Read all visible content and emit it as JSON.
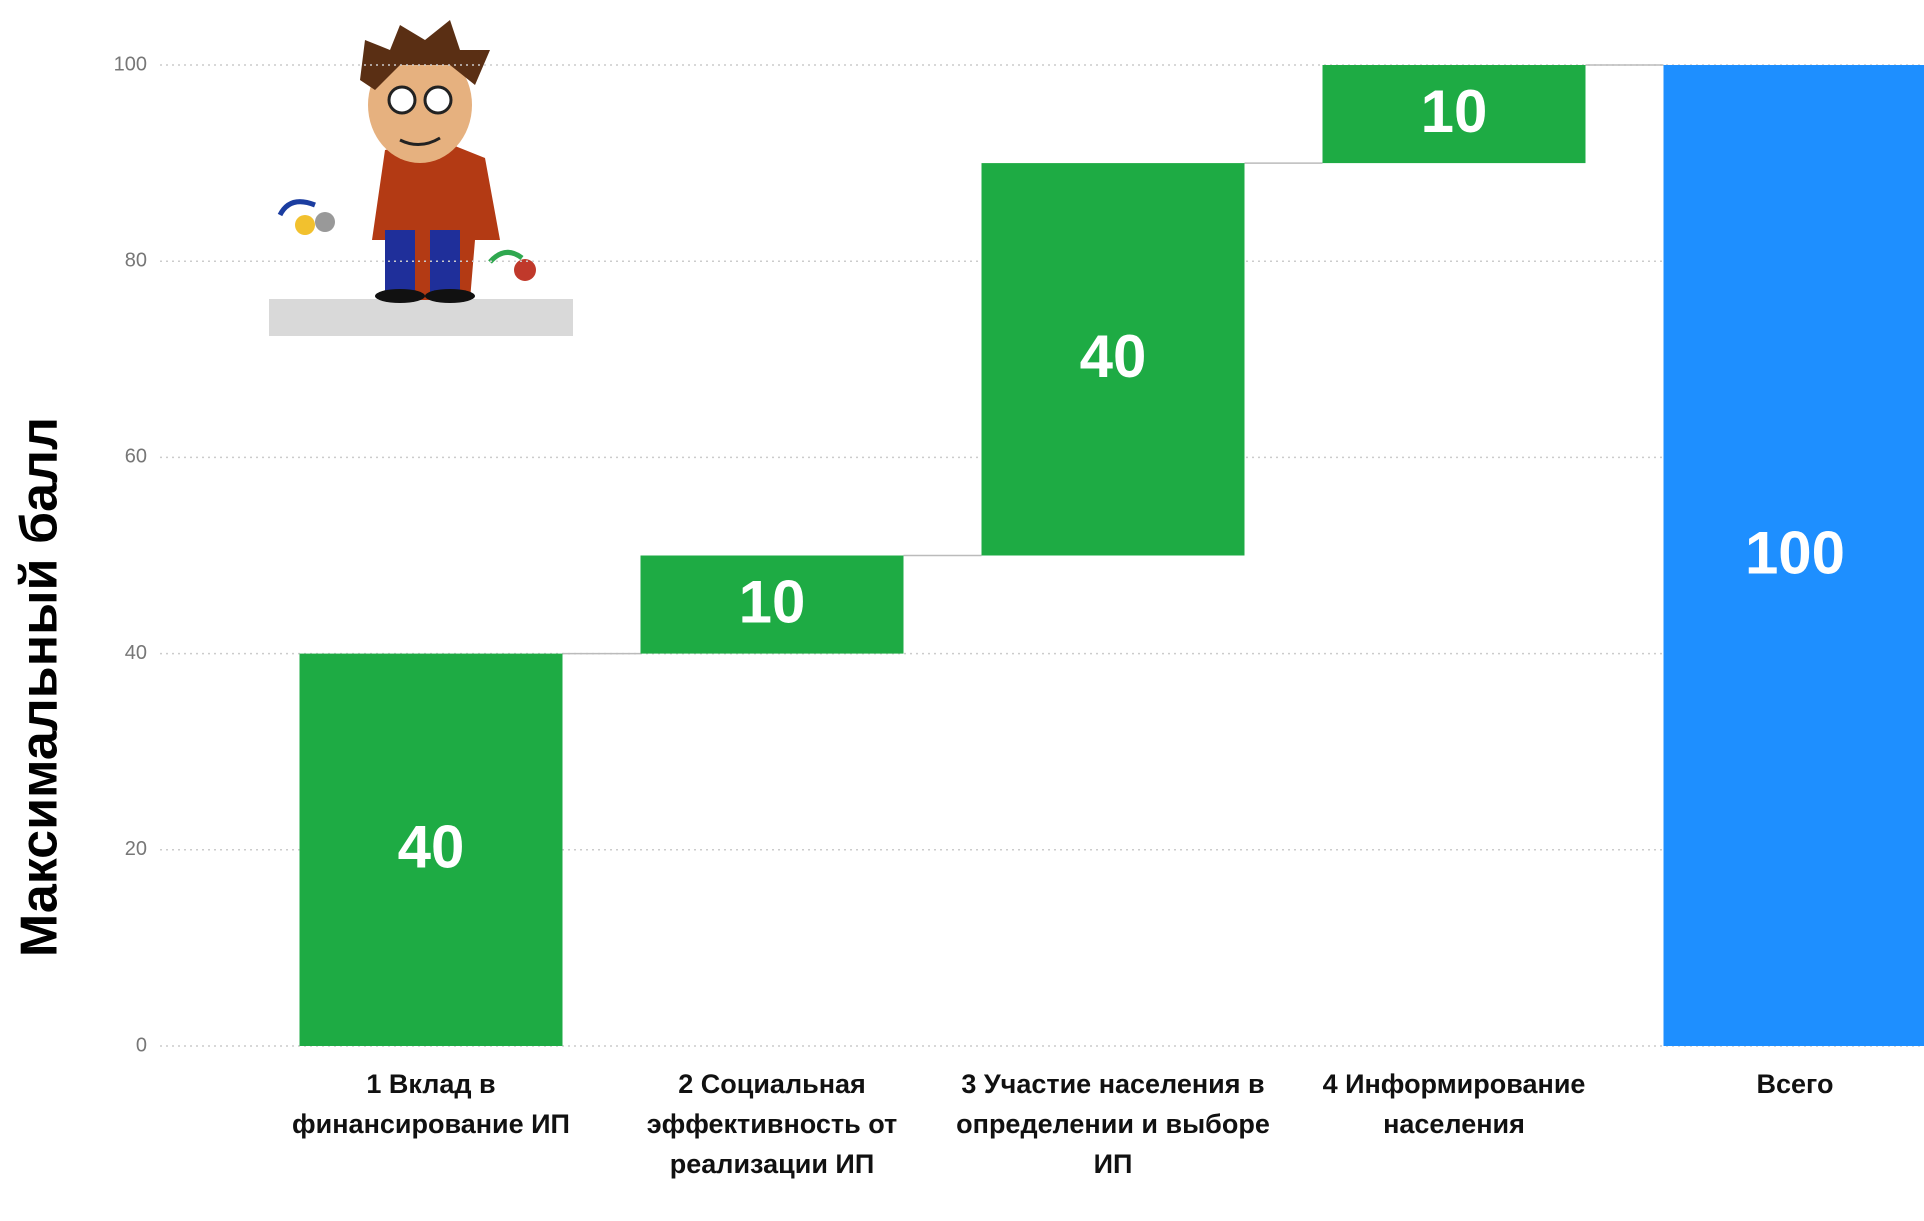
{
  "chart_data": {
    "type": "waterfall",
    "y_axis_label": "Максимальный балл",
    "categories": [
      "1 Вклад в финансирование ИП",
      "2 Социальная эффективность от реализации ИП",
      "3 Участие населения в определении и выборе ИП",
      "4 Информирование населения",
      "Всего"
    ],
    "values": [
      40,
      10,
      40,
      10,
      100
    ],
    "measure": [
      "relative",
      "relative",
      "relative",
      "relative",
      "total"
    ],
    "increase_color": "#1eab44",
    "total_color": "#1e8fff",
    "ylim": [
      0,
      100
    ],
    "yticks": [
      0,
      20,
      40,
      60,
      80,
      100
    ],
    "grid": true
  }
}
